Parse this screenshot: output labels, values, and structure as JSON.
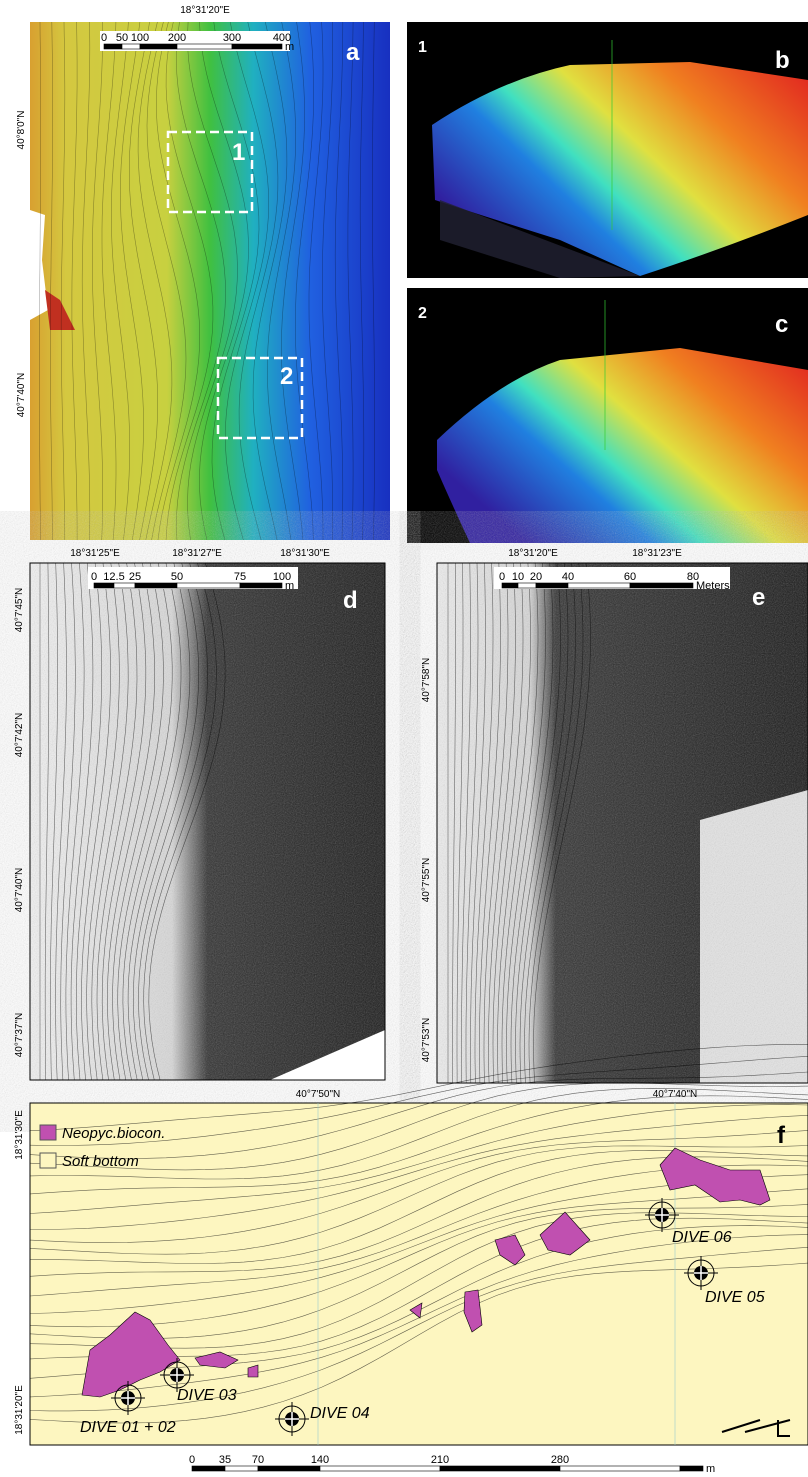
{
  "panel_a": {
    "letter": "a",
    "box_labels": [
      "1",
      "2"
    ],
    "lon_label": "18°31'20\"E",
    "lat_labels": [
      "40°8'0\"N",
      "40°7'40\"N"
    ],
    "scale": [
      "0",
      "50",
      "100",
      "200",
      "300",
      "400",
      "m"
    ]
  },
  "panel_b": {
    "number": "1",
    "letter": "b"
  },
  "panel_c": {
    "number": "2",
    "letter": "c"
  },
  "panel_d": {
    "letter": "d",
    "lon_labels": [
      "18°31'25\"E",
      "18°31'27\"E",
      "18°31'30\"E"
    ],
    "lat_labels": [
      "40°7'45\"N",
      "40°7'42\"N",
      "40°7'40\"N",
      "40°7'37\"N"
    ],
    "scale": [
      "0",
      "12.5",
      "25",
      "50",
      "75",
      "100",
      "m"
    ]
  },
  "panel_e": {
    "letter": "e",
    "lon_labels": [
      "18°31'20\"E",
      "18°31'23\"E"
    ],
    "lat_labels": [
      "40°7'58\"N",
      "40°7'55\"N",
      "40°7'53\"N"
    ],
    "scale": [
      "0",
      "10",
      "20",
      "40",
      "60",
      "80",
      "Meters"
    ]
  },
  "panel_f": {
    "letter": "f",
    "lat_labels": [
      "40°7'50\"N",
      "40°7'40\"N"
    ],
    "lon_labels": [
      "18°31'30\"E",
      "18°31'20\"E"
    ],
    "legend": [
      "Neopyc.biocon.",
      "Soft bottom"
    ],
    "dives": [
      "DIVE 01 + 02",
      "DIVE 03",
      "DIVE 04",
      "DIVE 05",
      "DIVE 06"
    ],
    "scale": [
      "0",
      "35",
      "70",
      "140",
      "210",
      "280",
      "m"
    ]
  }
}
